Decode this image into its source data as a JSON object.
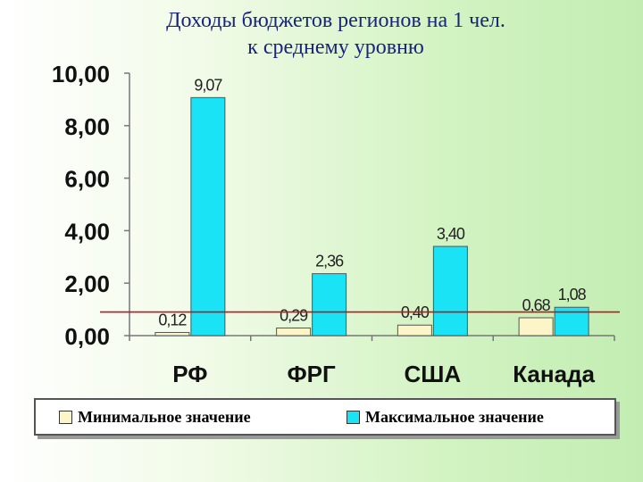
{
  "title_line1": "Доходы бюджетов регионов на 1 чел.",
  "title_line2": "к среднему уровню",
  "chart_data": {
    "type": "bar",
    "title": "Доходы бюджетов регионов на 1 чел. к среднему уровню",
    "categories": [
      "РФ",
      "ФРГ",
      "США",
      "Канада"
    ],
    "series": [
      {
        "name": "Минимальное значение",
        "values": [
          0.12,
          0.29,
          0.4,
          0.68
        ],
        "labels": [
          "0,12",
          "0,29",
          "0,40",
          "0,68"
        ],
        "color": "#fcf5c8"
      },
      {
        "name": "Максимальное значение",
        "values": [
          9.07,
          2.36,
          3.4,
          1.08
        ],
        "labels": [
          "9,07",
          "2,36",
          "3,40",
          "1,08"
        ],
        "color": "#19e3f5"
      }
    ],
    "yticks": [
      "0,00",
      "2,00",
      "4,00",
      "6,00",
      "8,00",
      "10,00"
    ],
    "ylim": [
      0,
      10
    ],
    "reference_line": {
      "value": 0.9,
      "color": "#c0141e"
    },
    "grid": false,
    "legend": "bottom"
  }
}
